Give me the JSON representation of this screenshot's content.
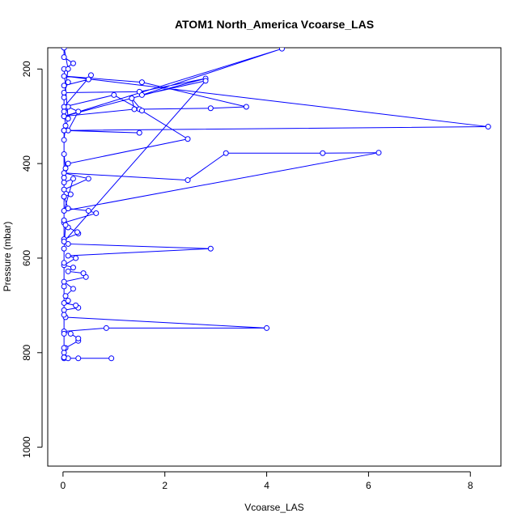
{
  "chart_data": {
    "type": "line",
    "title": "ATOM1 North_America Vcoarse_LAS",
    "xlabel": "Vcoarse_LAS",
    "ylabel": "Pressure (mbar)",
    "xlim": [
      -0.3,
      8.6
    ],
    "ylim": [
      1040,
      155
    ],
    "y_reversed": true,
    "x_ticks": [
      0,
      2,
      4,
      6,
      8
    ],
    "y_ticks": [
      200,
      400,
      600,
      800,
      1000
    ],
    "grid": false,
    "legend": "none",
    "series_color": "#0000ff",
    "series": [
      {
        "values": [
          [
            0.02,
            812
          ],
          [
            0.95,
            812
          ],
          [
            0.3,
            812
          ],
          [
            0.1,
            812
          ],
          [
            0.02,
            800
          ],
          [
            0.05,
            790
          ],
          [
            0.3,
            775
          ],
          [
            0.3,
            770
          ],
          [
            0.15,
            760
          ],
          [
            0.02,
            755
          ],
          [
            0.85,
            748
          ],
          [
            4.0,
            748
          ],
          [
            0.05,
            725
          ],
          [
            0.02,
            710
          ],
          [
            0.3,
            705
          ],
          [
            0.25,
            700
          ],
          [
            0.02,
            695
          ],
          [
            0.1,
            690
          ],
          [
            0.05,
            680
          ],
          [
            0.2,
            665
          ],
          [
            0.02,
            650
          ],
          [
            0.45,
            640
          ],
          [
            0.4,
            632
          ],
          [
            0.1,
            628
          ],
          [
            0.2,
            620
          ],
          [
            0.02,
            615
          ],
          [
            0.25,
            600
          ],
          [
            0.1,
            595
          ],
          [
            2.9,
            580
          ],
          [
            0.1,
            570
          ],
          [
            0.02,
            560
          ],
          [
            0.3,
            548
          ],
          [
            0.28,
            545
          ],
          [
            0.1,
            535
          ],
          [
            0.02,
            525
          ],
          [
            0.65,
            505
          ],
          [
            0.5,
            500
          ],
          [
            0.1,
            495
          ],
          [
            0.02,
            470
          ],
          [
            0.15,
            465
          ],
          [
            0.02,
            455
          ],
          [
            0.5,
            432
          ],
          [
            0.02,
            420
          ],
          [
            2.45,
            435
          ],
          [
            3.2,
            378
          ],
          [
            5.1,
            378
          ],
          [
            6.2,
            377
          ],
          [
            0.02,
            500
          ],
          [
            0.2,
            432
          ],
          [
            0.02,
            440
          ],
          [
            0.1,
            400
          ],
          [
            2.45,
            348
          ],
          [
            1.5,
            285
          ],
          [
            2.9,
            283
          ],
          [
            3.6,
            280
          ],
          [
            1.55,
            228
          ],
          [
            0.02,
            215
          ],
          [
            8.35,
            322
          ],
          [
            0.02,
            330
          ],
          [
            1.5,
            335
          ],
          [
            0.1,
            330
          ],
          [
            0.3,
            290
          ],
          [
            0.1,
            280
          ],
          [
            0.02,
            300
          ],
          [
            1.4,
            285
          ],
          [
            1.35,
            262
          ],
          [
            1.55,
            288
          ],
          [
            1.0,
            255
          ],
          [
            0.02,
            280
          ],
          [
            0.55,
            213
          ],
          [
            0.5,
            222
          ],
          [
            0.02,
            235
          ],
          [
            0.1,
            228
          ],
          [
            0.02,
            250
          ],
          [
            1.5,
            248
          ],
          [
            2.8,
            220
          ],
          [
            0.02,
            300
          ],
          [
            4.3,
            157
          ],
          [
            1.55,
            255
          ],
          [
            2.8,
            225
          ],
          [
            0.02,
            565
          ],
          [
            0.02,
            330
          ],
          [
            0.1,
            305
          ],
          [
            0.02,
            200
          ],
          [
            0.2,
            188
          ],
          [
            0.02,
            175
          ],
          [
            0.02,
            155
          ],
          [
            0.1,
            200
          ],
          [
            0.02,
            260
          ],
          [
            0.02,
            290
          ],
          [
            0.05,
            320
          ],
          [
            0.02,
            350
          ],
          [
            0.02,
            380
          ],
          [
            0.05,
            410
          ],
          [
            0.02,
            430
          ],
          [
            0.02,
            470
          ],
          [
            0.02,
            520
          ],
          [
            0.05,
            530
          ],
          [
            0.02,
            580
          ],
          [
            0.02,
            610
          ],
          [
            0.02,
            660
          ],
          [
            0.02,
            720
          ],
          [
            0.02,
            760
          ],
          [
            0.02,
            790
          ],
          [
            0.02,
            810
          ]
        ]
      }
    ]
  }
}
